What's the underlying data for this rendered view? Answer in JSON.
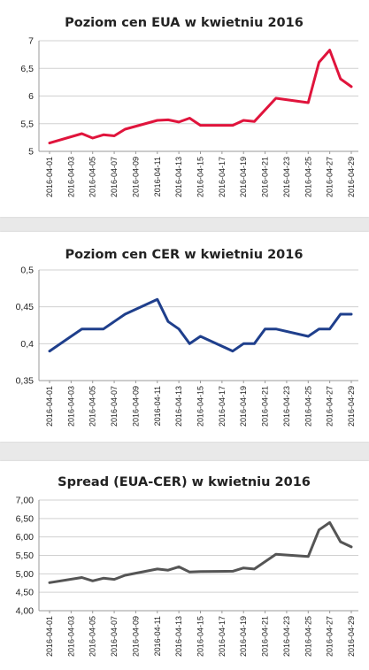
{
  "chart_data": [
    {
      "type": "line",
      "title": "Poziom cen EUA w kwietniu 2016",
      "xlabel": "",
      "ylabel": "",
      "ylim": [
        5,
        7
      ],
      "yticks": [
        5,
        5.5,
        6,
        6.5,
        7
      ],
      "ytick_labels": [
        "5",
        "5,5",
        "6",
        "6,5",
        "7"
      ],
      "color": "#e0143c",
      "x": [
        "2016-04-01",
        "2016-04-04",
        "2016-04-05",
        "2016-04-06",
        "2016-04-07",
        "2016-04-08",
        "2016-04-11",
        "2016-04-12",
        "2016-04-13",
        "2016-04-14",
        "2016-04-15",
        "2016-04-18",
        "2016-04-19",
        "2016-04-20",
        "2016-04-22",
        "2016-04-25",
        "2016-04-26",
        "2016-04-27",
        "2016-04-28",
        "2016-04-29"
      ],
      "values": [
        5.15,
        5.32,
        5.24,
        5.3,
        5.28,
        5.4,
        5.56,
        5.57,
        5.53,
        5.6,
        5.47,
        5.47,
        5.56,
        5.54,
        5.96,
        5.88,
        6.61,
        6.83,
        6.31,
        6.17
      ],
      "xtick_labels": [
        "2016-04-01",
        "2016-04-03",
        "2016-04-05",
        "2016-04-07",
        "2016-04-09",
        "2016-04-11",
        "2016-04-13",
        "2016-04-15",
        "2016-04-17",
        "2016-04-19",
        "2016-04-21",
        "2016-04-23",
        "2016-04-25",
        "2016-04-27",
        "2016-04-29"
      ],
      "grid": true
    },
    {
      "type": "line",
      "title": "Poziom cen CER w kwietniu 2016",
      "xlabel": "",
      "ylabel": "",
      "ylim": [
        0.35,
        0.5
      ],
      "yticks": [
        0.35,
        0.4,
        0.45,
        0.5
      ],
      "ytick_labels": [
        "0,35",
        "0,4",
        "0,45",
        "0,5"
      ],
      "color": "#1f3f8c",
      "x": [
        "2016-04-01",
        "2016-04-04",
        "2016-04-05",
        "2016-04-06",
        "2016-04-07",
        "2016-04-08",
        "2016-04-11",
        "2016-04-12",
        "2016-04-13",
        "2016-04-14",
        "2016-04-15",
        "2016-04-18",
        "2016-04-19",
        "2016-04-20",
        "2016-04-21",
        "2016-04-22",
        "2016-04-25",
        "2016-04-26",
        "2016-04-27",
        "2016-04-28",
        "2016-04-29"
      ],
      "values": [
        0.39,
        0.42,
        0.42,
        0.42,
        0.43,
        0.44,
        0.46,
        0.43,
        0.42,
        0.4,
        0.41,
        0.39,
        0.4,
        0.4,
        0.42,
        0.42,
        0.41,
        0.42,
        0.42,
        0.44,
        0.44
      ],
      "xtick_labels": [
        "2016-04-01",
        "2016-04-03",
        "2016-04-05",
        "2016-04-07",
        "2016-04-09",
        "2016-04-11",
        "2016-04-13",
        "2016-04-15",
        "2016-04-17",
        "2016-04-19",
        "2016-04-21",
        "2016-04-23",
        "2016-04-25",
        "2016-04-27",
        "2016-04-29"
      ],
      "grid": true
    },
    {
      "type": "line",
      "title": "Spread (EUA-CER) w kwietniu 2016",
      "xlabel": "",
      "ylabel": "",
      "ylim": [
        4,
        7
      ],
      "yticks": [
        4,
        4.5,
        5,
        5.5,
        6,
        6.5,
        7
      ],
      "ytick_labels": [
        "4,00",
        "4,50",
        "5,00",
        "5,50",
        "6,00",
        "6,50",
        "7,00"
      ],
      "color": "#555555",
      "x": [
        "2016-04-01",
        "2016-04-04",
        "2016-04-05",
        "2016-04-06",
        "2016-04-07",
        "2016-04-08",
        "2016-04-11",
        "2016-04-12",
        "2016-04-13",
        "2016-04-14",
        "2016-04-15",
        "2016-04-18",
        "2016-04-19",
        "2016-04-20",
        "2016-04-22",
        "2016-04-25",
        "2016-04-26",
        "2016-04-27",
        "2016-04-28",
        "2016-04-29"
      ],
      "values": [
        4.76,
        4.9,
        4.81,
        4.88,
        4.85,
        4.96,
        5.13,
        5.1,
        5.19,
        5.05,
        5.06,
        5.07,
        5.16,
        5.13,
        5.53,
        5.47,
        6.19,
        6.39,
        5.87,
        5.73
      ],
      "xtick_labels": [
        "2016-04-01",
        "2016-04-03",
        "2016-04-05",
        "2016-04-07",
        "2016-04-09",
        "2016-04-11",
        "2016-04-13",
        "2016-04-15",
        "2016-04-17",
        "2016-04-19",
        "2016-04-21",
        "2016-04-23",
        "2016-04-25",
        "2016-04-27",
        "2016-04-29"
      ],
      "grid": true
    }
  ]
}
